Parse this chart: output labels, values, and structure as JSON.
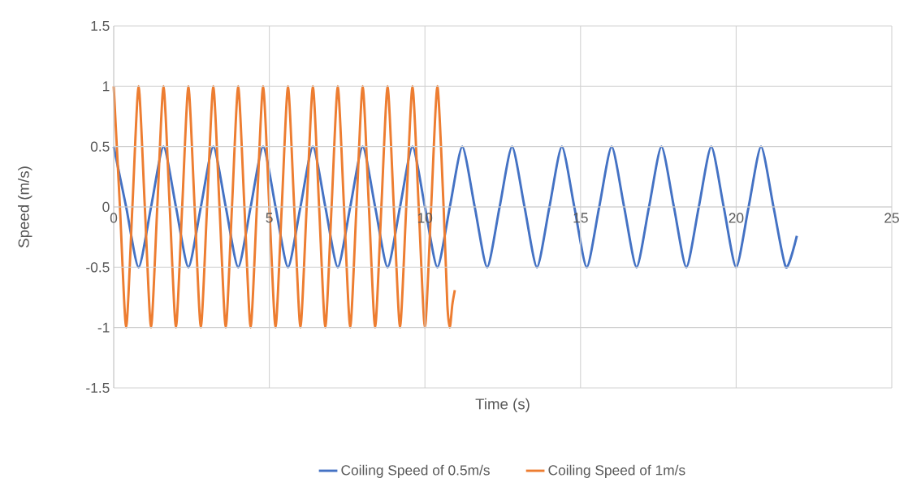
{
  "chart_data": {
    "type": "line",
    "xlabel": "Time (s)",
    "ylabel": "Speed (m/s)",
    "xlim": [
      0,
      25
    ],
    "ylim": [
      -1.5,
      1.5
    ],
    "xticks": [
      0,
      5,
      10,
      15,
      20,
      25
    ],
    "yticks": [
      -1.5,
      -1,
      -0.5,
      0,
      0.5,
      1,
      1.5
    ],
    "grid": true,
    "legend": "bottom",
    "series": [
      {
        "name": "Coiling Speed of 0.5m/s",
        "color": "#4472c4",
        "x": [
          0,
          0.4,
          0.8,
          1.2,
          1.6,
          2,
          2.4,
          2.8,
          3.2,
          3.6,
          4,
          4.4,
          4.8,
          5.2,
          5.6,
          6,
          6.4,
          6.8,
          7.2,
          7.6,
          8,
          8.4,
          8.8,
          9.2,
          9.6,
          10,
          10.4,
          10.8,
          11.2,
          11.6,
          12,
          12.4,
          12.8,
          13.2,
          13.6,
          14,
          14.4,
          14.8,
          15.2,
          15.6,
          16,
          16.4,
          16.8,
          17.2,
          17.6,
          18,
          18.4,
          18.8,
          19.2,
          19.6,
          20,
          20.4,
          20.8,
          21.2,
          21.6,
          21.95
        ],
        "values": [
          0.5,
          0,
          -0.5,
          0,
          0.5,
          0,
          -0.5,
          0,
          0.5,
          0,
          -0.5,
          0,
          0.5,
          0,
          -0.5,
          0,
          0.5,
          0,
          -0.5,
          0,
          0.5,
          0,
          -0.5,
          0,
          0.5,
          0,
          -0.5,
          0,
          0.5,
          0,
          -0.5,
          0,
          0.5,
          0,
          -0.5,
          0,
          0.5,
          0,
          -0.5,
          0,
          0.5,
          0,
          -0.5,
          0,
          0.5,
          0,
          -0.5,
          0,
          0.5,
          0,
          -0.5,
          0,
          0.5,
          0,
          -0.5,
          -0.24
        ]
      },
      {
        "name": "Coiling Speed of 1m/s",
        "color": "#ed7d31",
        "x": [
          0,
          0.2,
          0.4,
          0.6,
          0.8,
          1,
          1.2,
          1.4,
          1.6,
          1.8,
          2,
          2.2,
          2.4,
          2.6,
          2.8,
          3,
          3.2,
          3.4,
          3.6,
          3.8,
          4,
          4.2,
          4.4,
          4.6,
          4.8,
          5,
          5.2,
          5.4,
          5.6,
          5.8,
          6,
          6.2,
          6.4,
          6.6,
          6.8,
          7,
          7.2,
          7.4,
          7.6,
          7.8,
          8,
          8.2,
          8.4,
          8.6,
          8.8,
          9,
          9.2,
          9.4,
          9.6,
          9.8,
          10,
          10.2,
          10.4,
          10.6,
          10.72,
          10.8,
          10.88,
          10.96
        ],
        "values": [
          1,
          0,
          -1,
          0,
          1,
          0,
          -1,
          0,
          1,
          0,
          -1,
          0,
          1,
          0,
          -1,
          0,
          1,
          0,
          -1,
          0,
          1,
          0,
          -1,
          0,
          1,
          0,
          -1,
          0,
          1,
          0,
          -1,
          0,
          1,
          0,
          -1,
          0,
          1,
          0,
          -1,
          0,
          1,
          0,
          -1,
          0,
          1,
          0,
          -1,
          0,
          1,
          0,
          -1,
          0,
          1,
          0,
          -0.81,
          -1,
          -0.81,
          -0.69
        ]
      }
    ]
  }
}
